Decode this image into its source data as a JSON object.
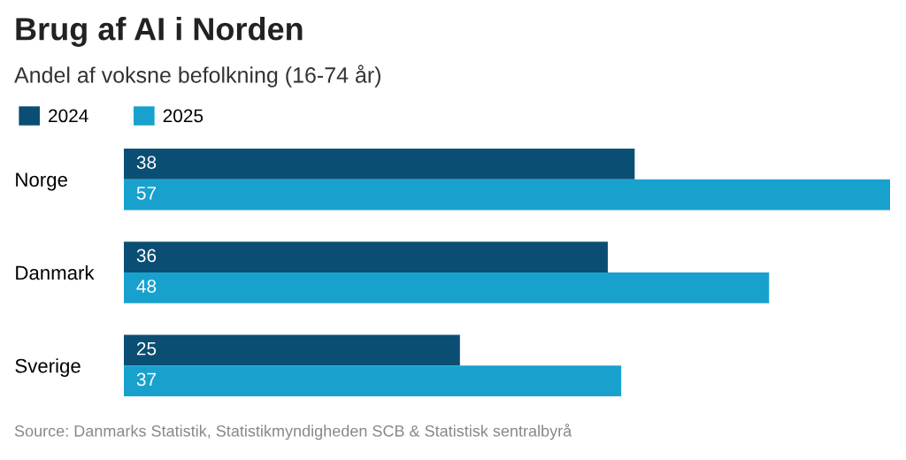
{
  "chart_data": {
    "type": "bar",
    "orientation": "horizontal",
    "title": "Brug af AI i Norden",
    "subtitle": "Andel af voksne befolkning (16-74 år)",
    "categories": [
      "Norge",
      "Danmark",
      "Sverige"
    ],
    "series": [
      {
        "name": "2024",
        "color": "#0b4e73",
        "values": [
          38,
          36,
          25
        ]
      },
      {
        "name": "2025",
        "color": "#18a1cd",
        "values": [
          57,
          48,
          37
        ]
      }
    ],
    "data_labels": true,
    "legend": "top left",
    "grid": false,
    "tick_labels": "y",
    "annotations": [
      "Source: Danmarks Statistik, Statistikmyndigheden SCB & Statistisk sentralbyrå"
    ]
  }
}
